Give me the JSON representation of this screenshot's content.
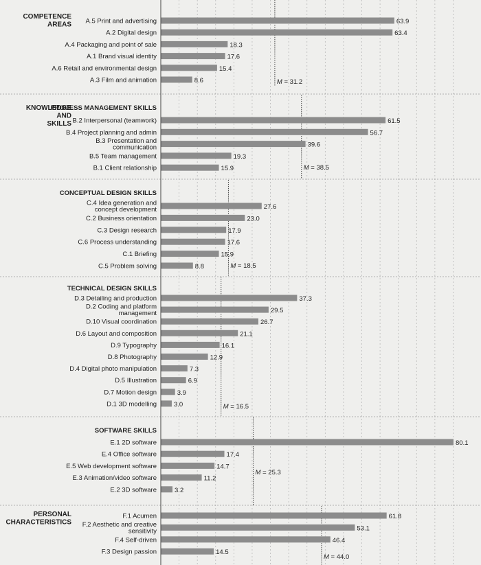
{
  "chart_data": {
    "type": "bar",
    "orientation": "horizontal",
    "xlim": [
      0,
      80.1
    ],
    "grid": true,
    "color": "#8c8c8c",
    "groups": [
      {
        "section": [
          "COMPETENCE",
          "AREAS"
        ],
        "subtitle": "",
        "mean": "31.2",
        "mean_value": 31.2,
        "items": [
          {
            "label": [
              "A.5 Print and advertising"
            ],
            "value": 63.9
          },
          {
            "label": [
              "A.2 Digital design"
            ],
            "value": 63.4
          },
          {
            "label": [
              "A.4 Packaging and point of sale"
            ],
            "value": 18.3
          },
          {
            "label": [
              "A.1 Brand visual identity"
            ],
            "value": 17.6
          },
          {
            "label": [
              "A.6 Retail and environmental design"
            ],
            "value": 15.4
          },
          {
            "label": [
              "A.3 Film and animation"
            ],
            "value": 8.6
          }
        ]
      },
      {
        "section": [
          "KNOWLEDGE",
          "AND",
          "SKILLS"
        ],
        "subtitle": "PROCESS MANAGEMENT SKILLS",
        "mean": "38.5",
        "mean_value": 38.5,
        "items": [
          {
            "label": [
              "B.2 Interpersonal (teamwork)"
            ],
            "value": 61.5
          },
          {
            "label": [
              "B.4 Project planning and admin"
            ],
            "value": 56.7
          },
          {
            "label": [
              "B.3 Presentation and",
              "communication"
            ],
            "value": 39.6
          },
          {
            "label": [
              "B.5 Team management"
            ],
            "value": 19.3
          },
          {
            "label": [
              "B.1 Client relationship"
            ],
            "value": 15.9
          }
        ]
      },
      {
        "section": [],
        "subtitle": "CONCEPTUAL DESIGN SKILLS",
        "mean": "18.5",
        "mean_value": 18.5,
        "items": [
          {
            "label": [
              "C.4 Idea generation and",
              "concept development"
            ],
            "value": 27.6
          },
          {
            "label": [
              "C.2 Business orientation"
            ],
            "value": 23.0
          },
          {
            "label": [
              "C.3 Design research"
            ],
            "value": 17.9
          },
          {
            "label": [
              "C.6 Process understanding"
            ],
            "value": 17.6
          },
          {
            "label": [
              "C.1 Briefing"
            ],
            "value": 15.9
          },
          {
            "label": [
              "C.5 Problem solving"
            ],
            "value": 8.8
          }
        ]
      },
      {
        "section": [],
        "subtitle": "TECHNICAL DESIGN SKILLS",
        "mean": "16.5",
        "mean_value": 16.5,
        "items": [
          {
            "label": [
              "D.3 Detailing and production"
            ],
            "value": 37.3
          },
          {
            "label": [
              "D.2 Coding and platform",
              "management"
            ],
            "value": 29.5
          },
          {
            "label": [
              "D.10 Visual coordination"
            ],
            "value": 26.7
          },
          {
            "label": [
              "D.6 Layout and composition"
            ],
            "value": 21.1
          },
          {
            "label": [
              "D.9 Typography"
            ],
            "value": 16.1
          },
          {
            "label": [
              "D.8 Photography"
            ],
            "value": 12.9
          },
          {
            "label": [
              "D.4 Digital photo manipulation"
            ],
            "value": 7.3
          },
          {
            "label": [
              "D.5 Illustration"
            ],
            "value": 6.9
          },
          {
            "label": [
              "D.7 Motion design"
            ],
            "value": 3.9
          },
          {
            "label": [
              "D.1 3D modelling"
            ],
            "value": 3.0
          }
        ]
      },
      {
        "section": [],
        "subtitle": "SOFTWARE SKILLS",
        "mean": "25.3",
        "mean_value": 25.3,
        "items": [
          {
            "label": [
              "E.1 2D software"
            ],
            "value": 80.1
          },
          {
            "label": [
              "E.4 Office software"
            ],
            "value": 17.4
          },
          {
            "label": [
              "E.5 Web development software"
            ],
            "value": 14.7
          },
          {
            "label": [
              "E.3 Animation/video software"
            ],
            "value": 11.2
          },
          {
            "label": [
              "E.2 3D software"
            ],
            "value": 3.2
          }
        ]
      },
      {
        "section": [
          "PERSONAL",
          "CHARACTERISTICS"
        ],
        "subtitle": "",
        "mean": "44.0",
        "mean_value": 44.0,
        "items": [
          {
            "label": [
              "F.1 Acumen"
            ],
            "value": 61.8
          },
          {
            "label": [
              "F.2 Aesthetic and creative",
              "sensitivity"
            ],
            "value": 53.1
          },
          {
            "label": [
              "F.4 Self-driven"
            ],
            "value": 46.4
          },
          {
            "label": [
              "F.3 Design passion"
            ],
            "value": 14.5
          }
        ]
      }
    ]
  }
}
